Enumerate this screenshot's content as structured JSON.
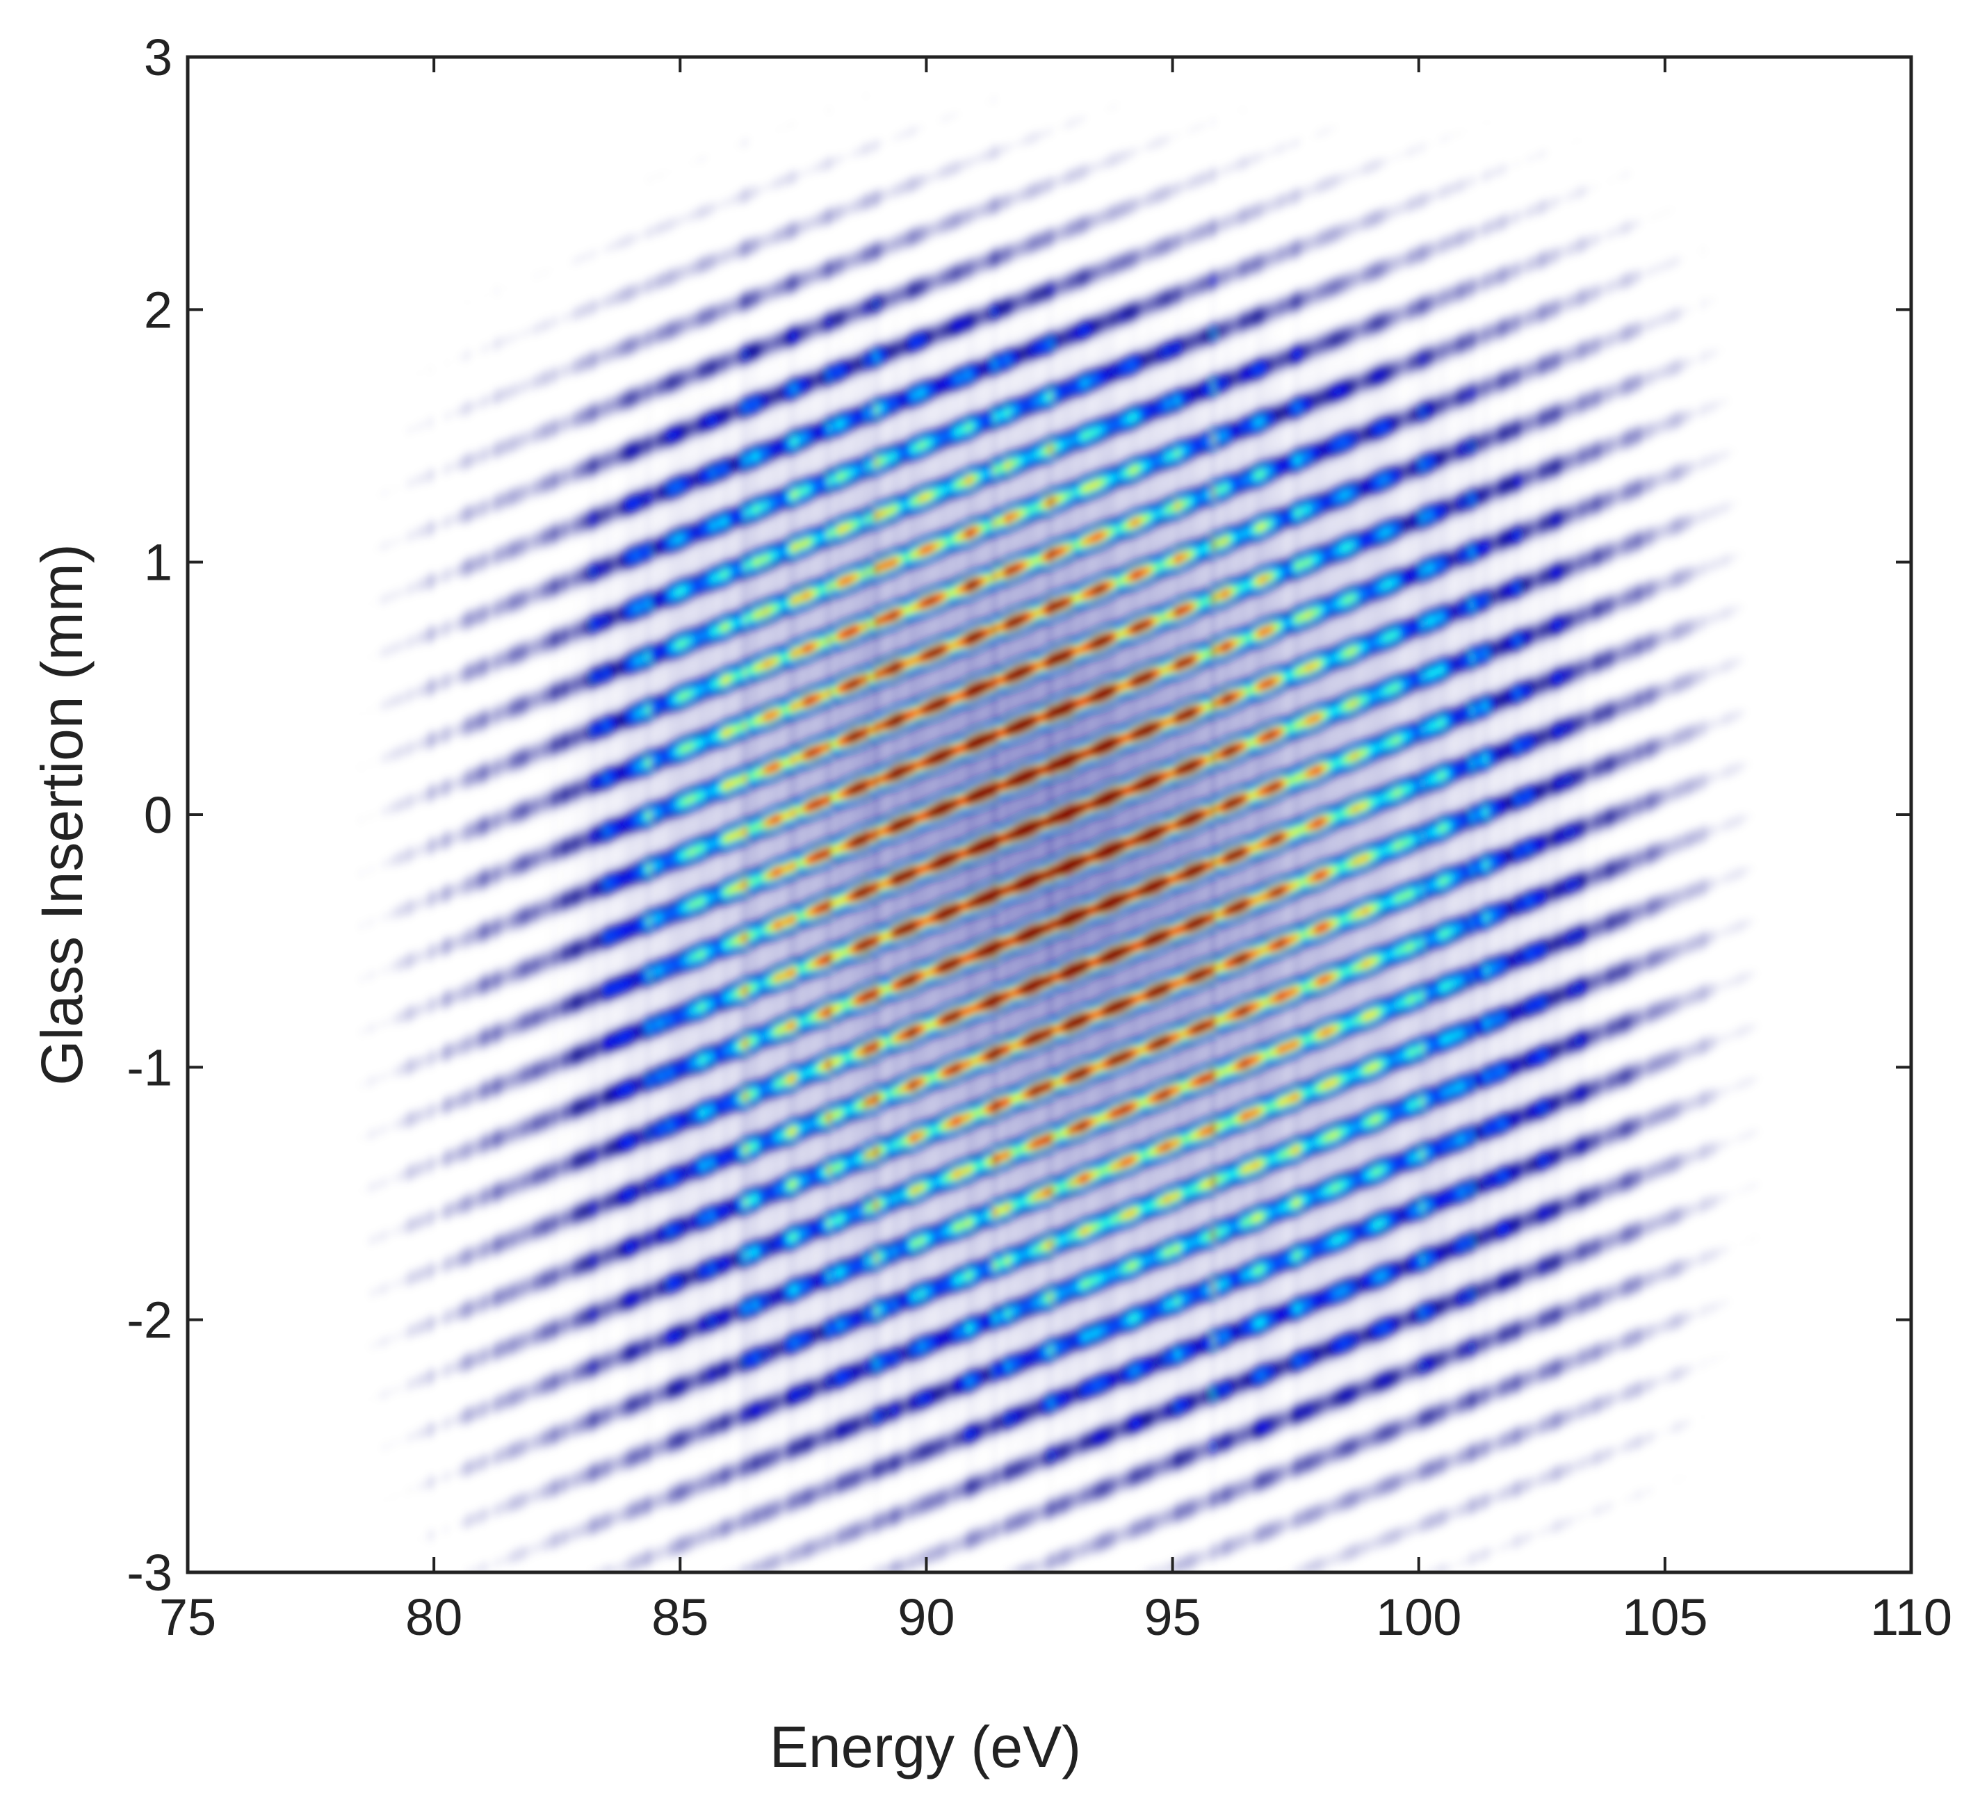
{
  "chart_data": {
    "type": "heatmap",
    "title": "",
    "xlabel": "Energy (eV)",
    "ylabel": "Glass Insertion (mm)",
    "xlim": [
      75,
      110
    ],
    "ylim": [
      -3,
      3
    ],
    "xticks": [
      75,
      80,
      85,
      90,
      95,
      100,
      105,
      110
    ],
    "yticks": [
      -3,
      -2,
      -1,
      0,
      1,
      2,
      3
    ],
    "xtick_labels": [
      "75",
      "80",
      "85",
      "90",
      "95",
      "100",
      "105",
      "110"
    ],
    "ytick_labels": [
      "-3",
      "-2",
      "-1",
      "0",
      "1",
      "2",
      "3"
    ],
    "grid": false,
    "colormap": "jet (white at zero intensity)",
    "fringe_spacing_mm": 0.21,
    "fringe_slope_mm_per_eV": 0.075,
    "intensity_peak": {
      "energy_eV": 92.5,
      "insertion_mm": -0.1
    },
    "signal_region": {
      "energy_range_eV": [
        75,
        110
      ],
      "bright_core_energy_eV": [
        84,
        100
      ],
      "bright_core_insertion_mm": [
        -2,
        1.8
      ]
    },
    "colors": {
      "low": "#00008f",
      "mid": "#00ffff",
      "high": "#ff0000",
      "frame": "#222222"
    }
  }
}
